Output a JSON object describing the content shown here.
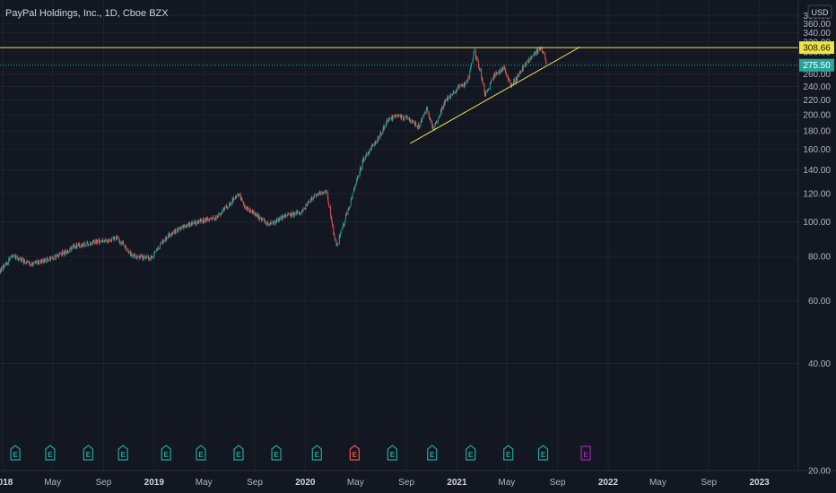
{
  "header": {
    "title": "PayPal Holdings, Inc., 1D, Cboe BZX",
    "currency": "USD"
  },
  "colors": {
    "background": "#131722",
    "grid": "#1e222d",
    "up": "#26a69a",
    "down": "#ef5350",
    "trendline": "#f0e442",
    "resistance": "#f0e442",
    "price_tag": "#26a69a",
    "earnings": "#26a69a",
    "earnings_miss": "#ef5350",
    "earnings_upcoming": "#9c27b0"
  },
  "chart_data": {
    "type": "candlestick",
    "title": "PayPal Holdings, Inc., 1D, Cboe BZX",
    "y_scale": "log",
    "ylim": [
      20,
      420
    ],
    "y_ticks": [
      20,
      40,
      60,
      80,
      100,
      120,
      140,
      160,
      180,
      200,
      220,
      240,
      260,
      280,
      300,
      320,
      340,
      360,
      380
    ],
    "y_tick_labels": [
      "20.00",
      "40.00",
      "60.00",
      "80.00",
      "100.00",
      "120.00",
      "140.00",
      "160.00",
      "180.00",
      "200.00",
      "220.00",
      "240.00",
      "260.00",
      "280.00",
      "300.00",
      "320.00",
      "340.00",
      "360.00",
      "380.00"
    ],
    "x_range": [
      "2017-12-25",
      "2023-04-05"
    ],
    "x_ticks": [
      {
        "date": "2018-01-01",
        "label": "2018",
        "year": true
      },
      {
        "date": "2018-05-01",
        "label": "May",
        "year": false
      },
      {
        "date": "2018-09-01",
        "label": "Sep",
        "year": false
      },
      {
        "date": "2019-01-01",
        "label": "2019",
        "year": true
      },
      {
        "date": "2019-05-01",
        "label": "May",
        "year": false
      },
      {
        "date": "2019-09-01",
        "label": "Sep",
        "year": false
      },
      {
        "date": "2020-01-01",
        "label": "2020",
        "year": true
      },
      {
        "date": "2020-05-01",
        "label": "May",
        "year": false
      },
      {
        "date": "2020-09-01",
        "label": "Sep",
        "year": false
      },
      {
        "date": "2021-01-01",
        "label": "2021",
        "year": true
      },
      {
        "date": "2021-05-01",
        "label": "May",
        "year": false
      },
      {
        "date": "2021-09-01",
        "label": "Sep",
        "year": false
      },
      {
        "date": "2022-01-01",
        "label": "2022",
        "year": true
      },
      {
        "date": "2022-05-01",
        "label": "May",
        "year": false
      },
      {
        "date": "2022-09-01",
        "label": "Sep",
        "year": false
      },
      {
        "date": "2023-01-01",
        "label": "2023",
        "year": true
      }
    ],
    "price_path": [
      [
        "2017-12-26",
        73
      ],
      [
        "2018-01-22",
        80
      ],
      [
        "2018-03-10",
        76
      ],
      [
        "2018-05-05",
        79
      ],
      [
        "2018-06-20",
        85
      ],
      [
        "2018-08-15",
        88
      ],
      [
        "2018-10-05",
        90
      ],
      [
        "2018-11-10",
        80
      ],
      [
        "2018-12-24",
        79
      ],
      [
        "2019-02-05",
        92
      ],
      [
        "2019-04-10",
        100
      ],
      [
        "2019-06-01",
        103
      ],
      [
        "2019-07-25",
        120
      ],
      [
        "2019-08-10",
        110
      ],
      [
        "2019-10-05",
        98
      ],
      [
        "2019-11-15",
        104
      ],
      [
        "2019-12-20",
        106
      ],
      [
        "2020-01-20",
        118
      ],
      [
        "2020-02-20",
        122
      ],
      [
        "2020-03-16",
        85
      ],
      [
        "2020-04-25",
        120
      ],
      [
        "2020-05-20",
        150
      ],
      [
        "2020-06-25",
        172
      ],
      [
        "2020-07-20",
        195
      ],
      [
        "2020-08-10",
        198
      ],
      [
        "2020-09-05",
        195
      ],
      [
        "2020-10-01",
        185
      ],
      [
        "2020-10-20",
        208
      ],
      [
        "2020-11-05",
        182
      ],
      [
        "2020-12-05",
        220
      ],
      [
        "2020-12-31",
        236
      ],
      [
        "2021-01-25",
        245
      ],
      [
        "2021-02-12",
        302
      ],
      [
        "2021-02-28",
        262
      ],
      [
        "2021-03-09",
        228
      ],
      [
        "2021-04-05",
        262
      ],
      [
        "2021-04-25",
        270
      ],
      [
        "2021-05-12",
        240
      ],
      [
        "2021-06-15",
        278
      ],
      [
        "2021-07-10",
        298
      ],
      [
        "2021-07-23",
        306
      ],
      [
        "2021-08-01",
        292
      ],
      [
        "2021-08-05",
        275
      ]
    ],
    "resistance": {
      "value": 308.66,
      "label": "308.66"
    },
    "last_price": {
      "value": 275.5,
      "label": "275.50"
    },
    "trendline": {
      "start": {
        "date": "2020-09-10",
        "value": 166
      },
      "end": {
        "date": "2021-10-25",
        "value": 310
      }
    },
    "earnings": [
      {
        "date": "2018-01-31",
        "type": "beat"
      },
      {
        "date": "2018-04-25",
        "type": "beat"
      },
      {
        "date": "2018-07-26",
        "type": "beat"
      },
      {
        "date": "2018-10-18",
        "type": "beat"
      },
      {
        "date": "2019-01-30",
        "type": "beat"
      },
      {
        "date": "2019-04-24",
        "type": "beat"
      },
      {
        "date": "2019-07-24",
        "type": "beat"
      },
      {
        "date": "2019-10-23",
        "type": "beat"
      },
      {
        "date": "2020-01-29",
        "type": "beat"
      },
      {
        "date": "2020-04-29",
        "type": "miss"
      },
      {
        "date": "2020-07-29",
        "type": "beat"
      },
      {
        "date": "2020-11-02",
        "type": "beat"
      },
      {
        "date": "2021-02-03",
        "type": "beat"
      },
      {
        "date": "2021-05-05",
        "type": "beat"
      },
      {
        "date": "2021-07-28",
        "type": "beat"
      },
      {
        "date": "2021-11-08",
        "type": "upcoming"
      }
    ],
    "earnings_glyph": "E"
  }
}
